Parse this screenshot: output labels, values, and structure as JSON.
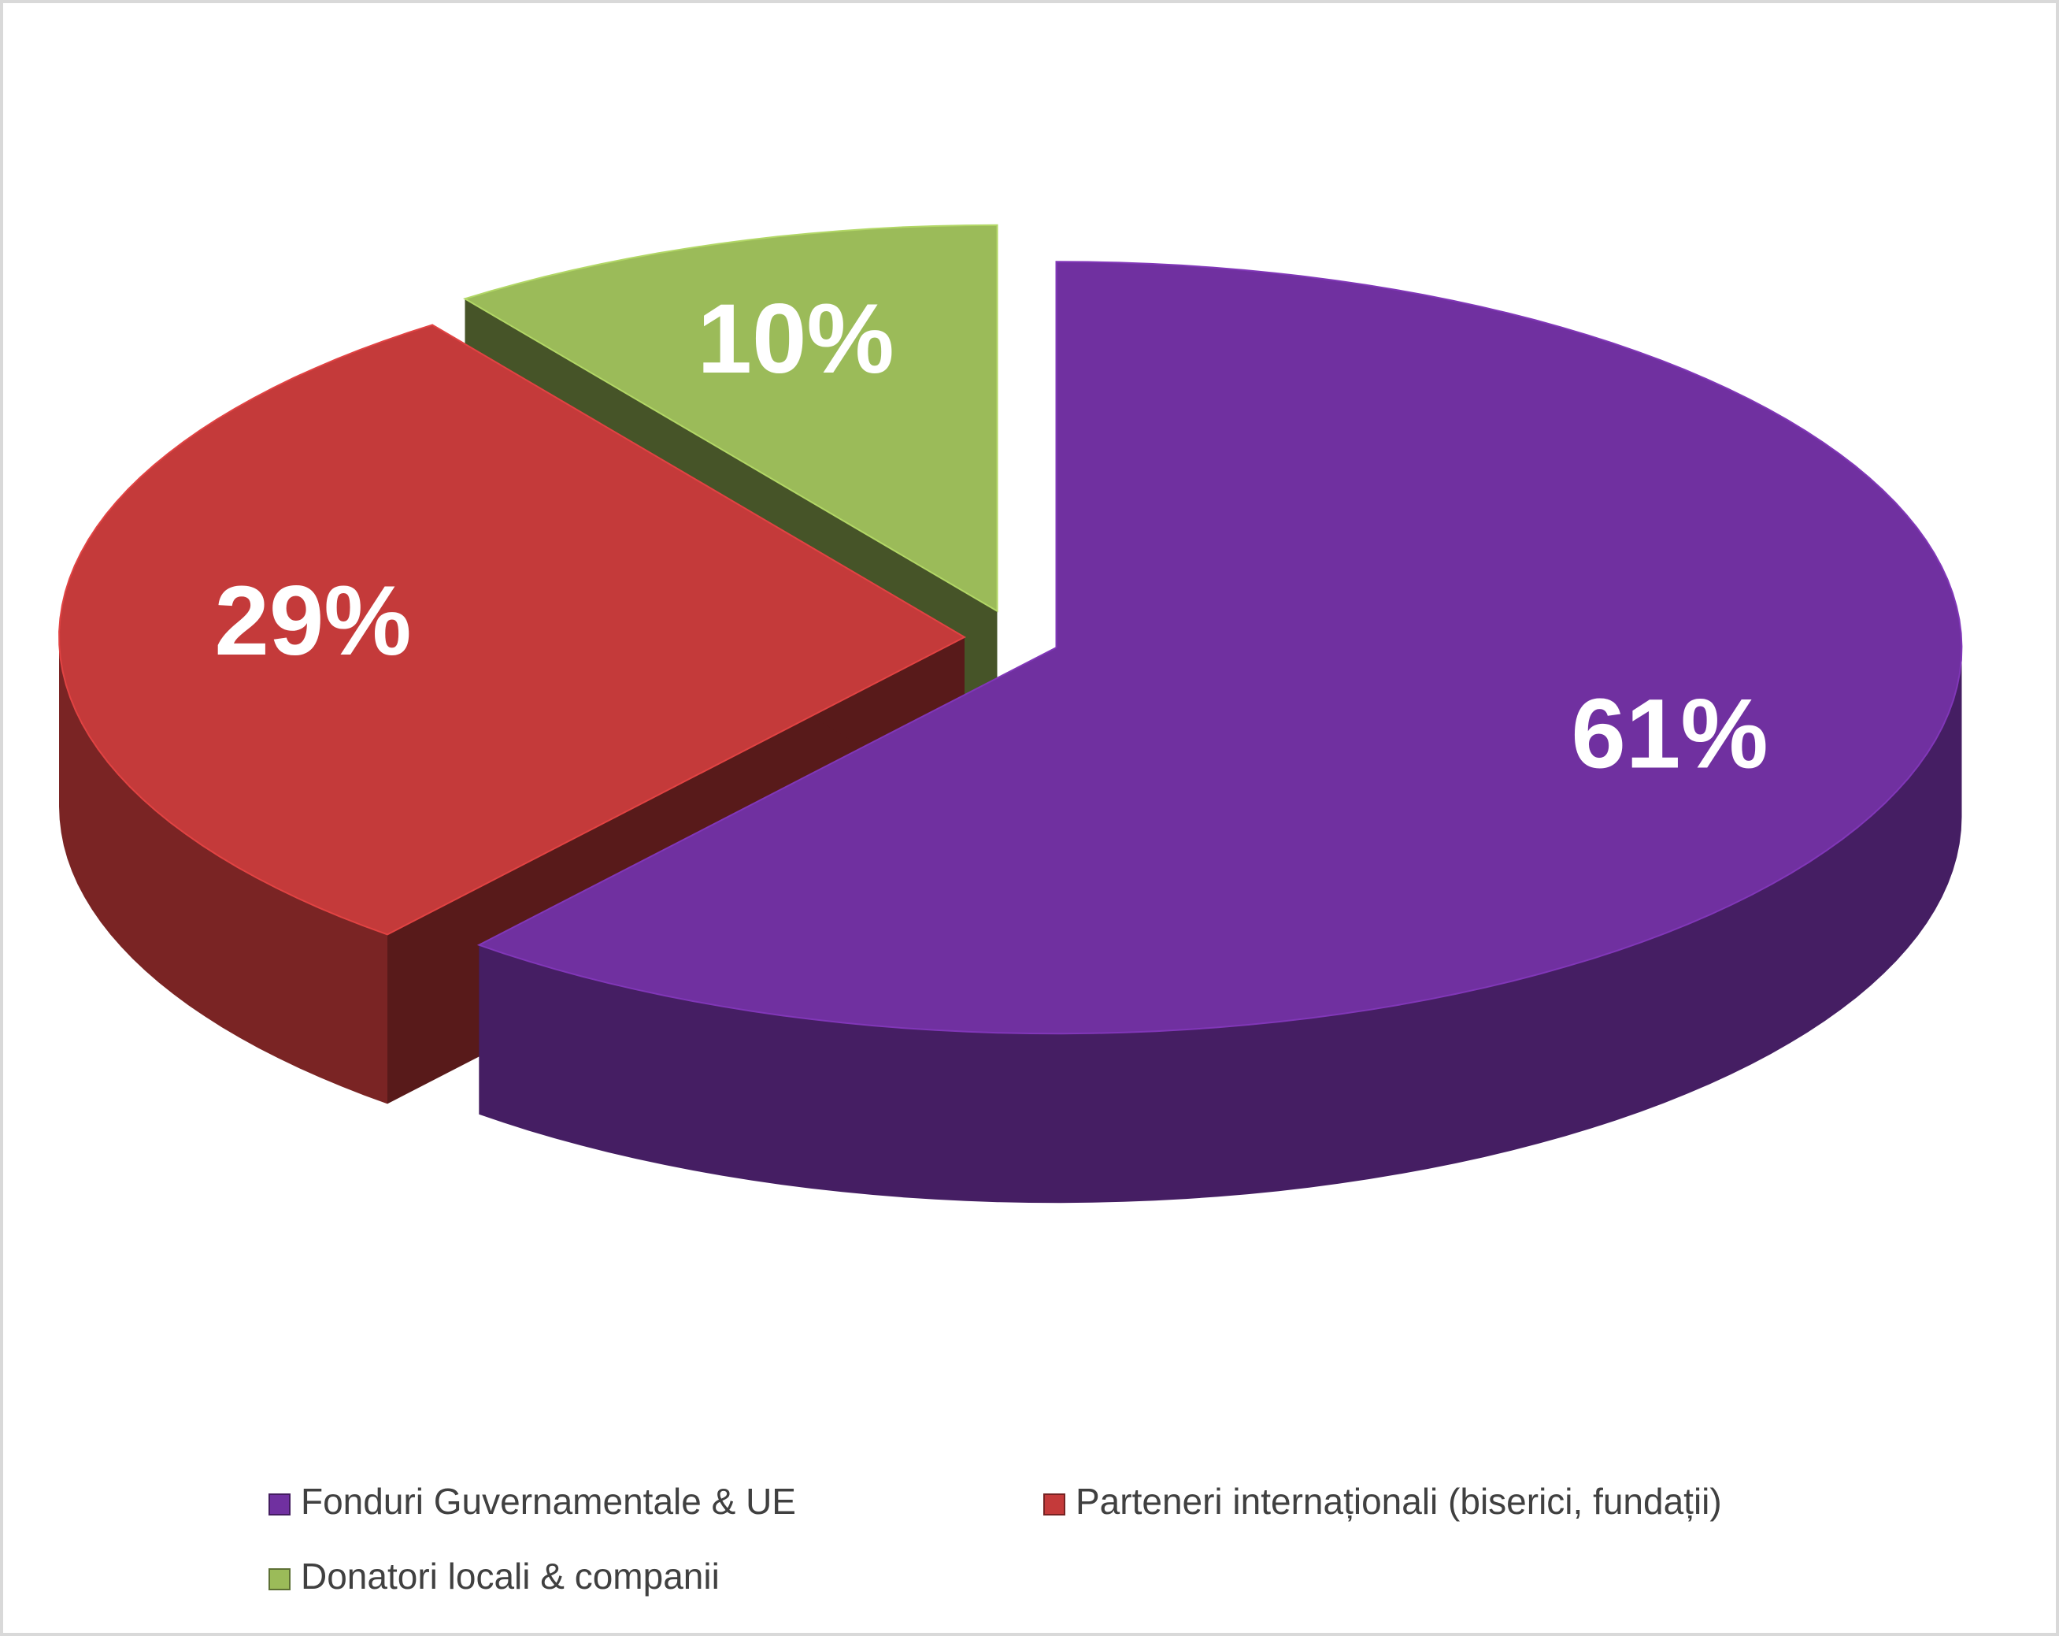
{
  "chart_data": {
    "type": "pie",
    "categories": [
      "Fonduri Guvernamentale & UE",
      "Parteneri internaționali (biserici, fundații)",
      "Donatori locali & companii"
    ],
    "values": [
      61,
      29,
      10
    ],
    "value_labels": [
      "61%",
      "29%",
      "10%"
    ],
    "colors": [
      "#7030a0",
      "#c43a3a",
      "#9bbb59"
    ],
    "legend": "bottom"
  }
}
